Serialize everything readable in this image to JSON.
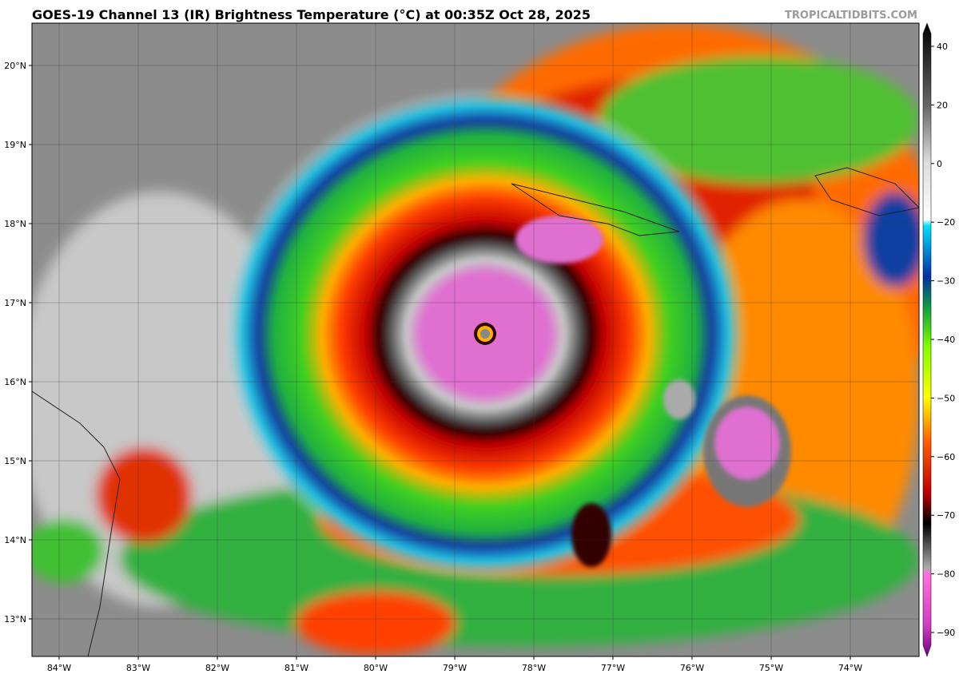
{
  "header": {
    "title": "GOES-19 Channel 13 (IR) Brightness Temperature (°C) at 00:35Z Oct 28, 2025",
    "watermark": "TROPICALTIDBITS.COM"
  },
  "map": {
    "lat_labels": [
      "20°N",
      "19°N",
      "18°N",
      "17°N",
      "16°N",
      "15°N",
      "14°N",
      "13°N"
    ],
    "lon_labels": [
      "84°W",
      "83°W",
      "82°W",
      "81°W",
      "80°W",
      "79°W",
      "78°W",
      "77°W",
      "76°W",
      "75°W",
      "74°W"
    ]
  },
  "colorbar": {
    "ticks": [
      "40",
      "20",
      "0",
      "−20",
      "−30",
      "−40",
      "−50",
      "−60",
      "−70",
      "−80",
      "−90"
    ]
  }
}
